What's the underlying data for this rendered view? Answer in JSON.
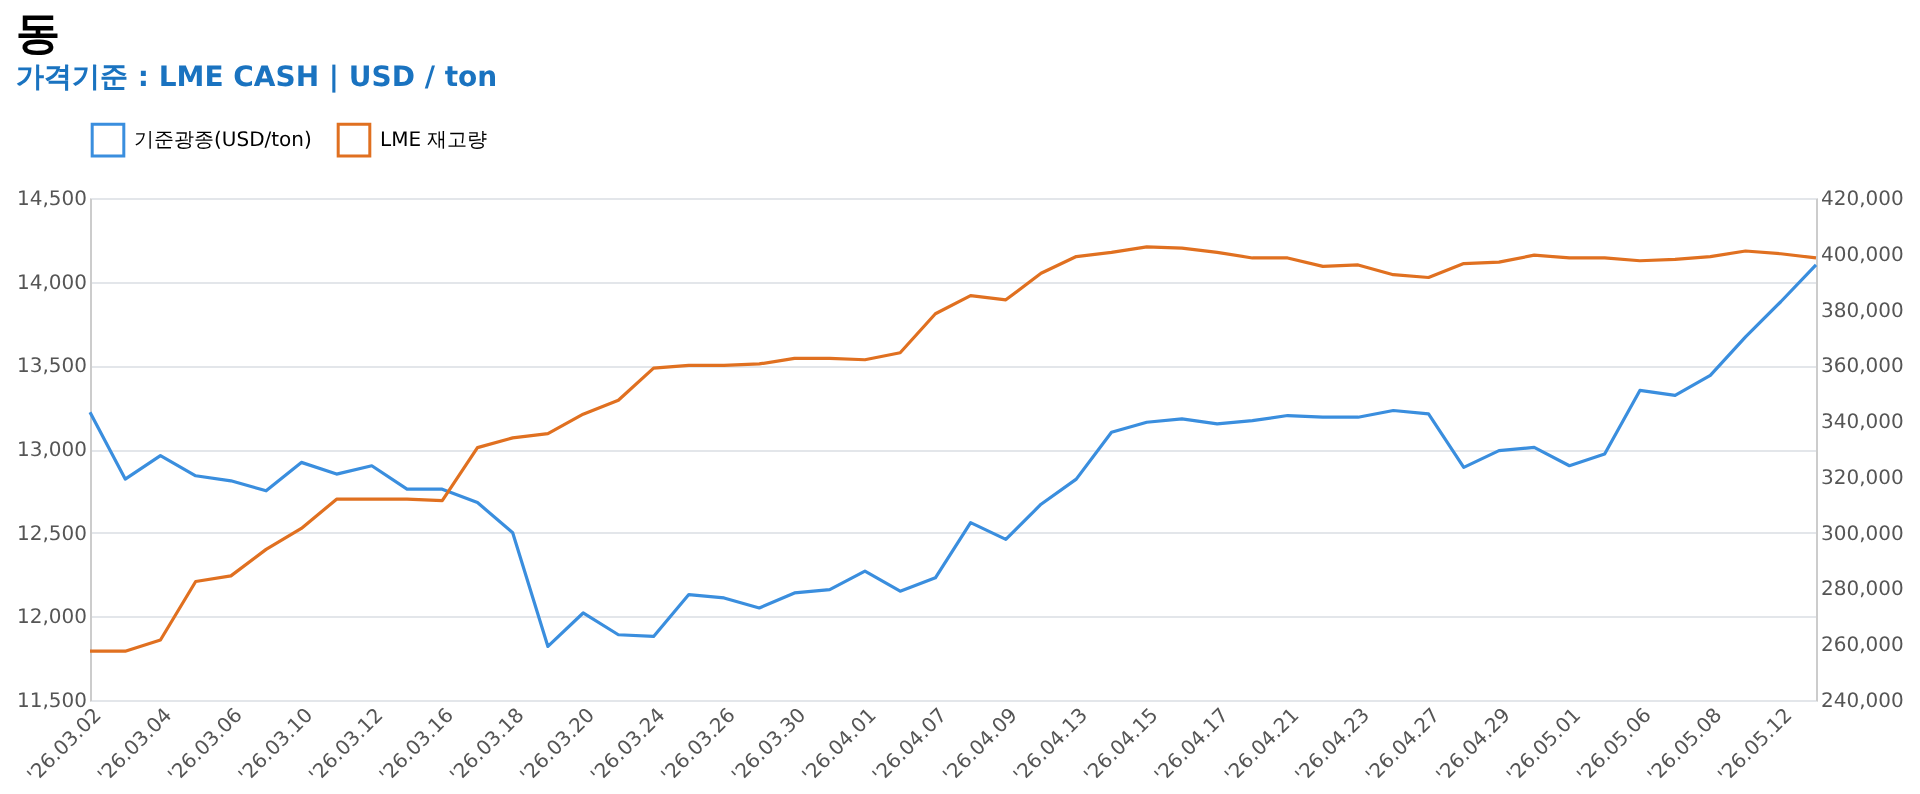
{
  "chart_data": {
    "type": "line",
    "title": "동",
    "subtitle": "가격기준 : LME CASH | USD / ton",
    "categories": [
      "'26.03.02",
      null,
      "'26.03.04",
      null,
      "'26.03.06",
      null,
      "'26.03.10",
      null,
      "'26.03.12",
      null,
      "'26.03.16",
      null,
      "'26.03.18",
      null,
      "'26.03.20",
      null,
      "'26.03.24",
      null,
      "'26.03.26",
      null,
      "'26.03.30",
      null,
      "'26.04.01",
      null,
      "'26.04.07",
      null,
      "'26.04.09",
      null,
      "'26.04.13",
      null,
      "'26.04.15",
      null,
      "'26.04.17",
      null,
      "'26.04.21",
      null,
      "'26.04.23",
      null,
      "'26.04.27",
      null,
      "'26.04.29",
      null,
      "'26.05.01",
      null,
      "'26.05.06",
      null,
      "'26.05.08",
      null,
      "'26.05.12",
      null
    ],
    "series": [
      {
        "name": "기준광종(USD/ton)",
        "color": "#3a8ede",
        "values": [
          13220,
          12820,
          12960,
          12840,
          12810,
          12750,
          12920,
          12850,
          12900,
          12760,
          12760,
          12680,
          12500,
          11820,
          12020,
          11890,
          11880,
          12130,
          12110,
          12050,
          12140,
          12160,
          12270,
          12150,
          12230,
          12560,
          12460,
          12670,
          12820,
          13100,
          13160,
          13180,
          13150,
          13170,
          13200,
          13190,
          13190,
          13230,
          13210,
          12890,
          12990,
          13010,
          12900,
          12970,
          13350,
          13320,
          13440,
          13670,
          13880,
          14100
        ]
      },
      {
        "name": "LME 재고량",
        "color": "#e07020",
        "axis": "y2",
        "values": [
          257500,
          257500,
          261500,
          282500,
          284500,
          294000,
          301500,
          312000,
          312000,
          312000,
          311500,
          330500,
          334000,
          335500,
          342500,
          347500,
          359000,
          360000,
          360000,
          360500,
          362500,
          362500,
          362000,
          364500,
          378500,
          385000,
          383500,
          393000,
          399000,
          400500,
          402500,
          402000,
          400500,
          398500,
          398500,
          395500,
          396000,
          392500,
          391500,
          396500,
          397000,
          399500,
          398500,
          398500,
          397500,
          398000,
          399000,
          401000,
          400000,
          398500
        ]
      }
    ],
    "ylim": [
      11500,
      14500
    ],
    "yticks": [
      {
        "value": 11500,
        "label": "11,500"
      },
      {
        "value": 12000,
        "label": "12,000"
      },
      {
        "value": 12500,
        "label": "12,500"
      },
      {
        "value": 13000,
        "label": "13,000"
      },
      {
        "value": 13500,
        "label": "13,500"
      },
      {
        "value": 14000,
        "label": "14,000"
      },
      {
        "value": 14500,
        "label": "14,500"
      }
    ],
    "y2lim": [
      240000,
      420000
    ],
    "y2ticks": [
      {
        "value": 240000,
        "label": "240,000"
      },
      {
        "value": 260000,
        "label": "260,000"
      },
      {
        "value": 280000,
        "label": "280,000"
      },
      {
        "value": 300000,
        "label": "300,000"
      },
      {
        "value": 320000,
        "label": "320,000"
      },
      {
        "value": 340000,
        "label": "340,000"
      },
      {
        "value": 360000,
        "label": "360,000"
      },
      {
        "value": 380000,
        "label": "380,000"
      },
      {
        "value": 400000,
        "label": "400,000"
      },
      {
        "value": 420000,
        "label": "420,000"
      }
    ],
    "grid": "y",
    "legend": "top",
    "marker": "none",
    "line_style": "solid"
  }
}
